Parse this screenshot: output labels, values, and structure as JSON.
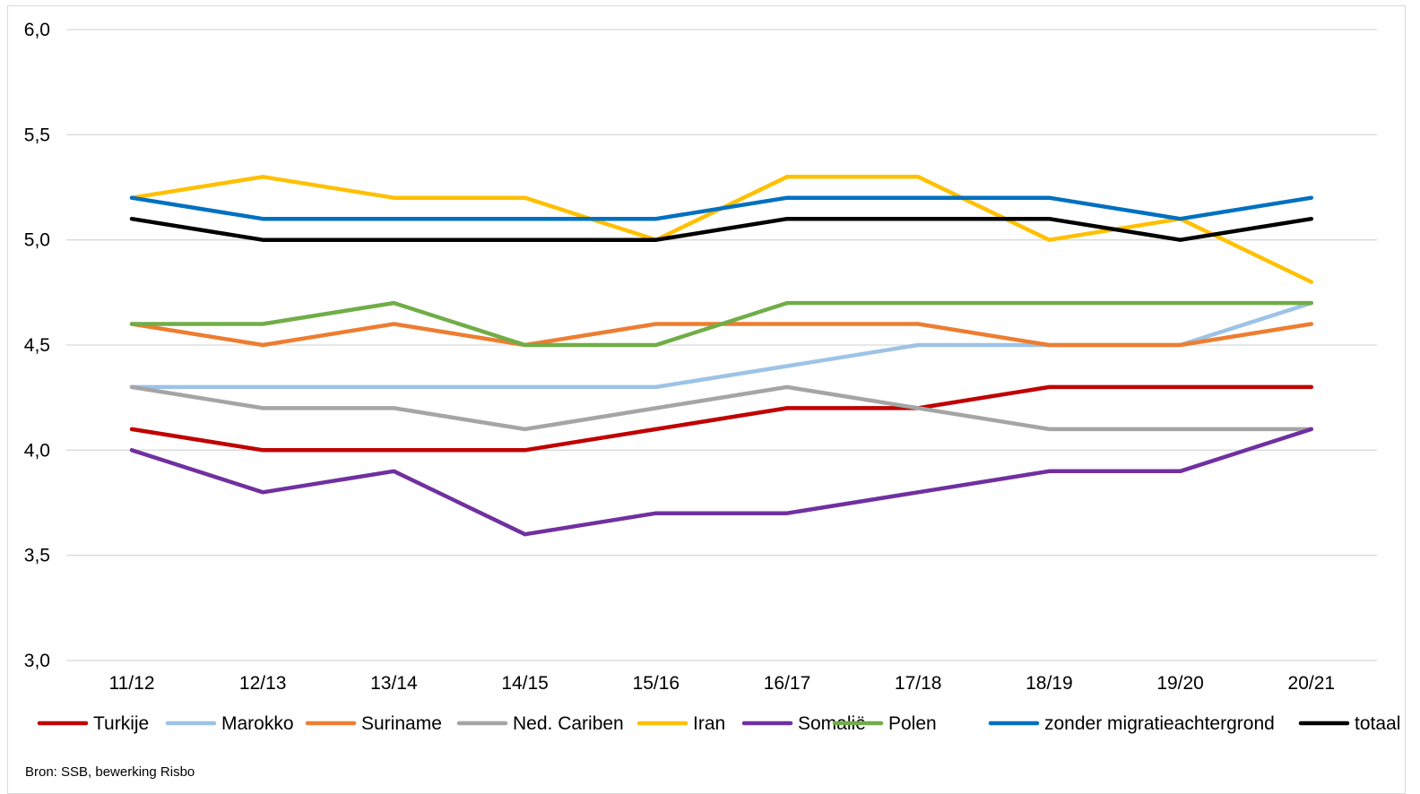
{
  "chart_data": {
    "type": "line",
    "title": "",
    "xlabel": "",
    "ylabel": "",
    "categories": [
      "11/12",
      "12/13",
      "13/14",
      "14/15",
      "15/16",
      "16/17",
      "17/18",
      "18/19",
      "19/20",
      "20/21"
    ],
    "ylim": [
      3.0,
      6.0
    ],
    "yticks": [
      "3,0",
      "3,5",
      "4,0",
      "4,5",
      "5,0",
      "5,5",
      "6,0"
    ],
    "grid": true,
    "legend_position": "bottom",
    "series": [
      {
        "name": "Turkije",
        "color": "#c00000",
        "values": [
          4.1,
          4.0,
          4.0,
          4.0,
          4.1,
          4.2,
          4.2,
          4.3,
          4.3,
          4.3
        ]
      },
      {
        "name": "Marokko",
        "color": "#9dc3e6",
        "values": [
          4.3,
          4.3,
          4.3,
          4.3,
          4.3,
          4.4,
          4.5,
          4.5,
          4.5,
          4.7
        ]
      },
      {
        "name": "Suriname",
        "color": "#ed7d31",
        "values": [
          4.6,
          4.5,
          4.6,
          4.5,
          4.6,
          4.6,
          4.6,
          4.5,
          4.5,
          4.6
        ]
      },
      {
        "name": "Ned. Cariben",
        "color": "#a5a5a5",
        "values": [
          4.3,
          4.2,
          4.2,
          4.1,
          4.2,
          4.3,
          4.2,
          4.1,
          4.1,
          4.1
        ]
      },
      {
        "name": "Iran",
        "color": "#ffc000",
        "values": [
          5.2,
          5.3,
          5.2,
          5.2,
          5.0,
          5.3,
          5.3,
          5.0,
          5.1,
          4.8
        ]
      },
      {
        "name": "Somalië",
        "color": "#7030a0",
        "values": [
          4.0,
          3.8,
          3.9,
          3.6,
          3.7,
          3.7,
          3.8,
          3.9,
          3.9,
          4.1
        ]
      },
      {
        "name": "Polen",
        "color": "#70ad47",
        "values": [
          4.6,
          4.6,
          4.7,
          4.5,
          4.5,
          4.7,
          4.7,
          4.7,
          4.7,
          4.7
        ]
      },
      {
        "name": "zonder migratieachtergrond",
        "color": "#0070c0",
        "values": [
          5.2,
          5.1,
          5.1,
          5.1,
          5.1,
          5.2,
          5.2,
          5.2,
          5.1,
          5.2
        ]
      },
      {
        "name": "totaal",
        "color": "#000000",
        "values": [
          5.1,
          5.0,
          5.0,
          5.0,
          5.0,
          5.1,
          5.1,
          5.1,
          5.0,
          5.1
        ]
      }
    ]
  },
  "source_note": "Bron: SSB, bewerking Risbo"
}
